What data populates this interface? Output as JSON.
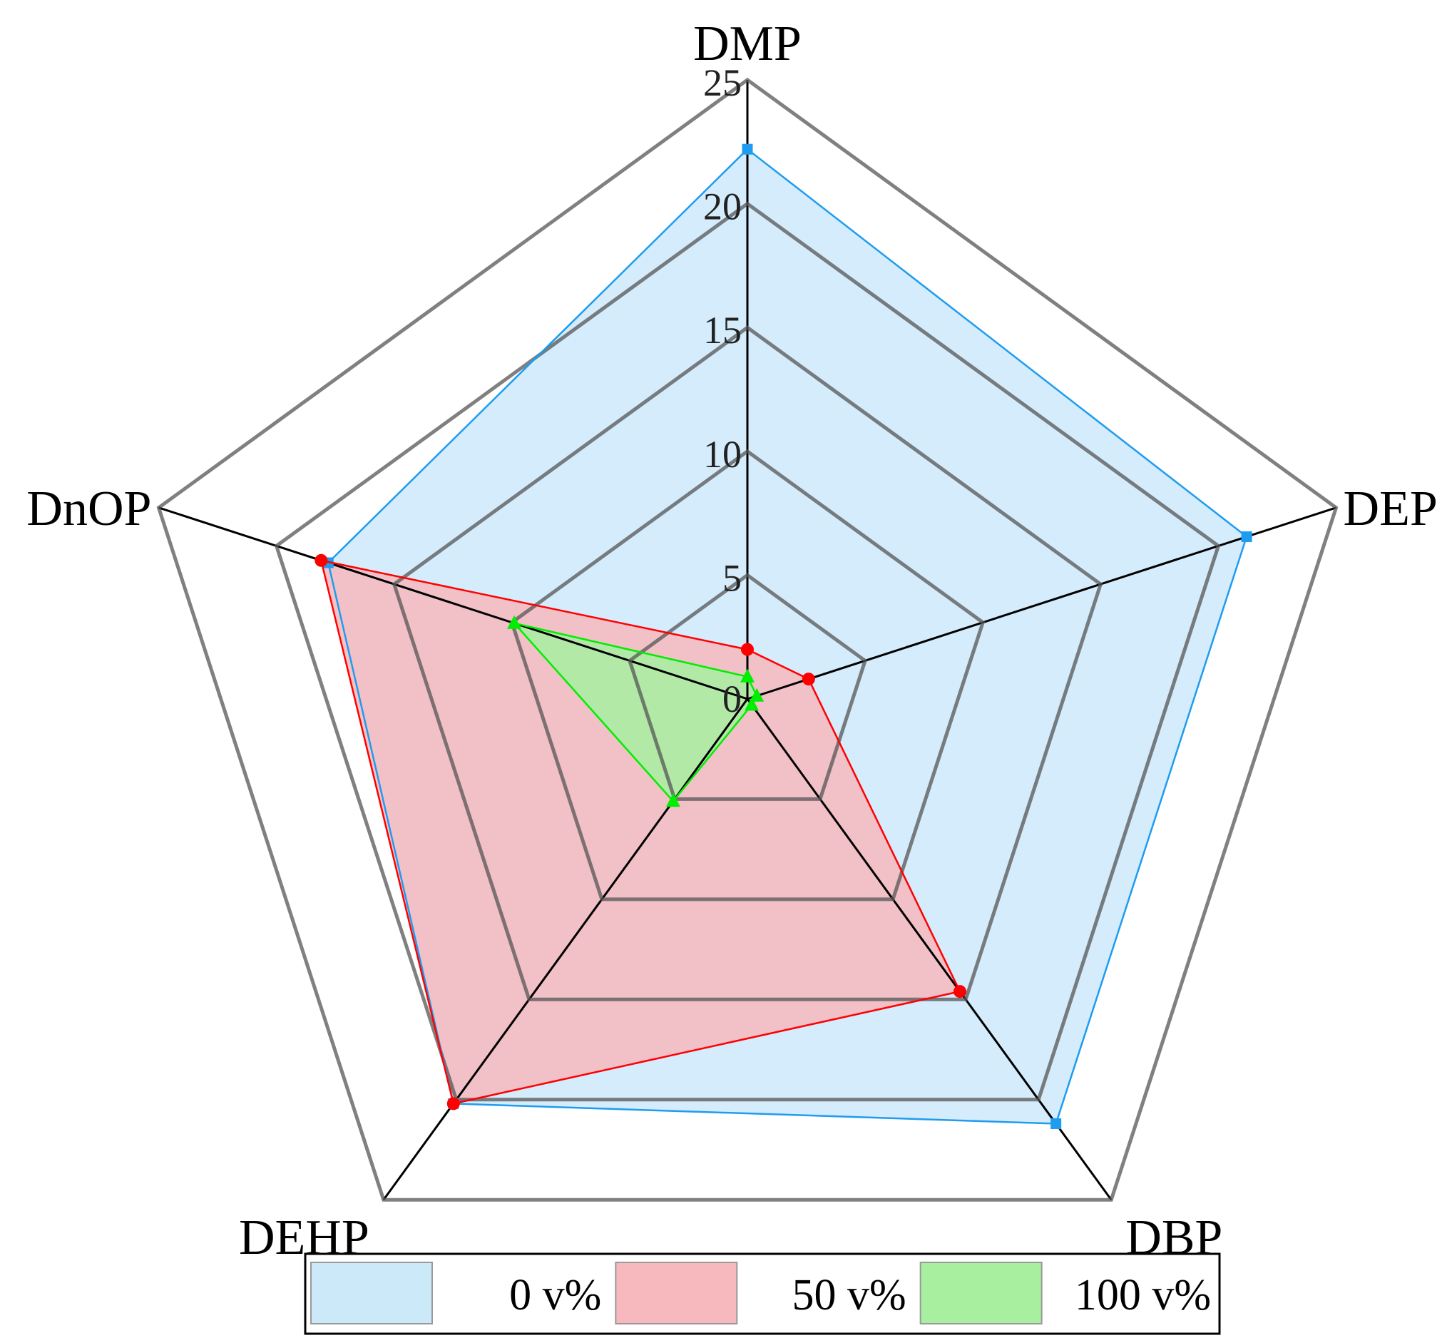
{
  "chart_data": {
    "type": "radar",
    "axes": [
      "DMP",
      "DEP",
      "DBP",
      "DEHP",
      "DnOP"
    ],
    "radial_ticks": [
      "0",
      "5",
      "10",
      "15",
      "20",
      "25"
    ],
    "rmax": 25,
    "series": [
      {
        "name": "0 v%",
        "values": [
          22.2,
          21.2,
          21.2,
          20.2,
          17.8
        ],
        "color": "#1e9cf0",
        "fill": "#cce9fa",
        "marker": "square"
      },
      {
        "name": "50 v%",
        "values": [
          2.0,
          2.6,
          14.6,
          20.2,
          18.1
        ],
        "color": "#ff0000",
        "fill": "#f7b9bd",
        "marker": "circle"
      },
      {
        "name": "100 v%",
        "values": [
          0.9,
          0.4,
          0.3,
          5.1,
          9.9
        ],
        "color": "#00ee00",
        "fill": "#a8f0a0",
        "marker": "triangle"
      }
    ],
    "legend": {
      "placement": "bottom",
      "items": [
        "0 v%",
        "50 v%",
        "100 v%"
      ]
    },
    "grid": true
  }
}
